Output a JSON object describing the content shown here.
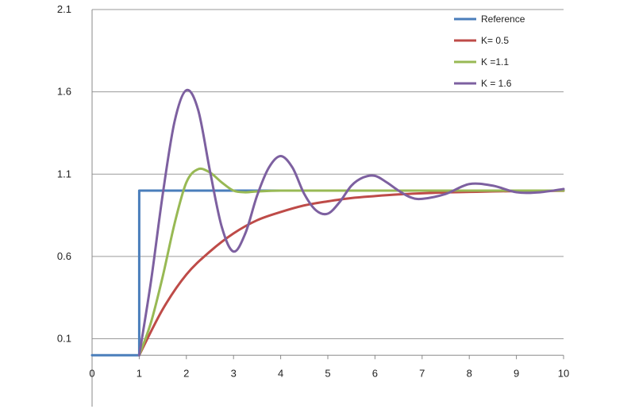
{
  "chart_data": {
    "type": "line",
    "title": "",
    "xlabel": "",
    "ylabel": "",
    "xlim": [
      0,
      10
    ],
    "ylim": [
      -0.1,
      2.1
    ],
    "x_ticks": [
      "0",
      "1",
      "2",
      "3",
      "4",
      "5",
      "6",
      "7",
      "8",
      "9",
      "10"
    ],
    "y_ticks": [
      "0.1",
      "0.6",
      "1.1",
      "1.6",
      "2.1"
    ],
    "grid": "horizontal",
    "legend_position": "top-right",
    "series": [
      {
        "name": "Reference",
        "color": "#4a7ebb",
        "x": [
          0,
          1,
          1,
          2.2,
          10
        ],
        "y": [
          0,
          0,
          1,
          1,
          1
        ]
      },
      {
        "name": "K= 0.5",
        "color": "#be4b48",
        "x": [
          1,
          1.5,
          2,
          2.5,
          3,
          3.5,
          4,
          4.5,
          5,
          5.5,
          6,
          6.5,
          7,
          7.5,
          8,
          8.5,
          9,
          10
        ],
        "y": [
          0,
          0.28,
          0.49,
          0.63,
          0.74,
          0.82,
          0.87,
          0.91,
          0.935,
          0.955,
          0.967,
          0.977,
          0.984,
          0.989,
          0.992,
          0.995,
          0.997,
          0.999
        ]
      },
      {
        "name": "K =1.1",
        "color": "#98b954",
        "x": [
          1,
          1.25,
          1.5,
          1.75,
          2,
          2.25,
          2.5,
          2.75,
          3,
          3.25,
          3.5,
          4,
          5,
          6,
          7,
          8,
          9,
          10
        ],
        "y": [
          0,
          0.2,
          0.48,
          0.8,
          1.05,
          1.13,
          1.11,
          1.05,
          1.0,
          0.99,
          0.995,
          1.0,
          1.0,
          1.0,
          1.0,
          1.0,
          1.0,
          1.0
        ]
      },
      {
        "name": "K = 1.6",
        "color": "#7d60a0",
        "x": [
          1,
          1.25,
          1.5,
          1.75,
          2,
          2.25,
          2.5,
          2.75,
          3,
          3.25,
          3.5,
          3.75,
          4,
          4.25,
          4.5,
          4.75,
          5,
          5.25,
          5.5,
          5.75,
          6,
          6.25,
          6.5,
          6.75,
          7,
          7.5,
          8,
          8.5,
          9,
          9.5,
          10
        ],
        "y": [
          0,
          0.45,
          0.98,
          1.42,
          1.61,
          1.49,
          1.12,
          0.78,
          0.63,
          0.74,
          0.97,
          1.14,
          1.21,
          1.14,
          0.98,
          0.88,
          0.86,
          0.93,
          1.03,
          1.08,
          1.09,
          1.05,
          1.0,
          0.96,
          0.95,
          0.98,
          1.04,
          1.03,
          0.99,
          0.99,
          1.01
        ]
      }
    ]
  }
}
